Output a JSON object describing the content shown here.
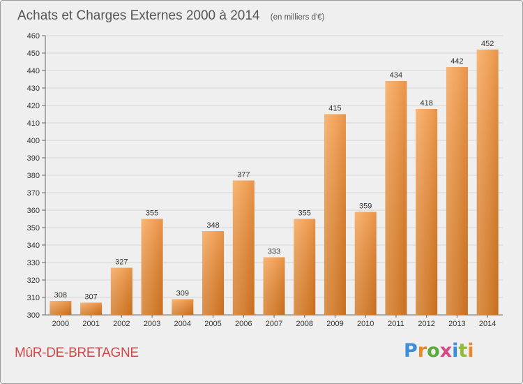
{
  "chart_data": {
    "type": "bar",
    "title": "Achats et Charges Externes 2000 à 2014",
    "subtitle": "(en milliers d'€)",
    "xlabel": "",
    "ylabel": "",
    "categories": [
      "2000",
      "2001",
      "2002",
      "2003",
      "2004",
      "2005",
      "2006",
      "2007",
      "2008",
      "2009",
      "2010",
      "2011",
      "2012",
      "2013",
      "2014"
    ],
    "values": [
      308,
      307,
      327,
      355,
      309,
      348,
      377,
      333,
      355,
      415,
      359,
      434,
      418,
      442,
      452
    ],
    "ylim": [
      300,
      460
    ],
    "yticks": [
      300,
      310,
      320,
      330,
      340,
      350,
      360,
      370,
      380,
      390,
      400,
      410,
      420,
      430,
      440,
      450,
      460
    ],
    "grid": true,
    "bar_color": "#f0913a"
  },
  "footer": {
    "location": "MûR-DE-BRETAGNE",
    "location_color": "#d04848"
  },
  "brand": {
    "name": "Proxiti",
    "letter_colors": [
      "#3a8fd6",
      "#e8892c",
      "#5aaa3c",
      "#d64a8a",
      "#3a8fd6",
      "#8fbd3a",
      "#e8892c"
    ]
  }
}
